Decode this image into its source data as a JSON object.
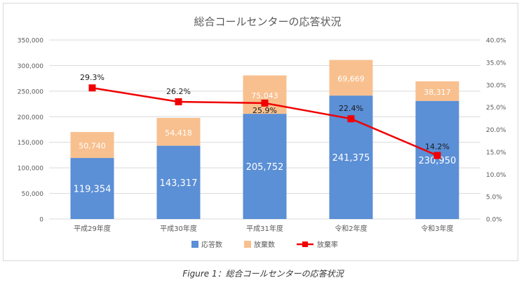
{
  "caption": "Figure 1：総合コールセンターの応答状況",
  "chart_data": {
    "type": "bar",
    "stacked": true,
    "title": "総合コールセンターの応答状況",
    "categories": [
      "平成29年度",
      "平成30年度",
      "平成31年度",
      "令和2年度",
      "令和3年度"
    ],
    "series": [
      {
        "name": "応答数",
        "type": "bar",
        "axis": "left",
        "color": "#5b8fd6",
        "values": [
          119354,
          143317,
          205752,
          241375,
          230950
        ],
        "labels": [
          "119,354",
          "143,317",
          "205,752",
          "241,375",
          "230,950"
        ]
      },
      {
        "name": "放棄数",
        "type": "bar",
        "axis": "left",
        "color": "#f8c08f",
        "values": [
          50740,
          54418,
          75043,
          69669,
          38317
        ],
        "labels": [
          "50,740",
          "54,418",
          "75,043",
          "69,669",
          "38,317"
        ]
      },
      {
        "name": "放棄率",
        "type": "line",
        "axis": "right",
        "color": "#f00000",
        "values": [
          29.3,
          26.2,
          25.9,
          22.4,
          14.2
        ],
        "labels": [
          "29.3%",
          "26.2%",
          "25.9%",
          "22.4%",
          "14.2%"
        ]
      }
    ],
    "y_left": {
      "range": [
        0,
        350000
      ],
      "ticks": [
        "0",
        "50,000",
        "100,000",
        "150,000",
        "200,000",
        "250,000",
        "300,000",
        "350,000"
      ]
    },
    "y_right": {
      "range": [
        0,
        40
      ],
      "ticks": [
        "0.0%",
        "5.0%",
        "10.0%",
        "15.0%",
        "20.0%",
        "25.0%",
        "30.0%",
        "35.0%",
        "40.0%"
      ]
    },
    "grid": true,
    "legend_position": "bottom"
  }
}
